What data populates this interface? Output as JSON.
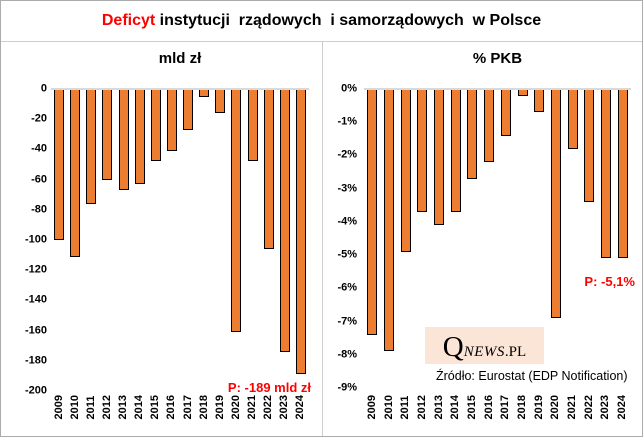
{
  "title": {
    "highlight": "Deficyt",
    "rest": " instytucji  rządowych  i samorządowych  w Polsce"
  },
  "colors": {
    "bar_fill": "#ED7D31",
    "bar_border": "#000000",
    "accent_red": "#FF0000",
    "zero_line": "#D9D9D9",
    "logo_background": "#FBE5D6",
    "frame_border": "#ABABAB"
  },
  "logo": {
    "q": "Q",
    "news": "NEWS",
    "pl": ".PL"
  },
  "source_note": "Źródło: Eurostat (EDP Notification)",
  "chart_data": [
    {
      "type": "bar",
      "title": "mld zł",
      "categories": [
        "2009",
        "2010",
        "2011",
        "2012",
        "2013",
        "2014",
        "2015",
        "2016",
        "2017",
        "2018",
        "2019",
        "2020",
        "2021",
        "2022",
        "2023",
        "2024"
      ],
      "values": [
        -100,
        -111,
        -76,
        -60,
        -67,
        -63,
        -48,
        -41,
        -27,
        -5,
        -16,
        -161,
        -48,
        -106,
        -174,
        -189
      ],
      "xlabel": "",
      "ylabel": "",
      "ylim": [
        0,
        -200
      ],
      "yticks": [
        0,
        -20,
        -40,
        -60,
        -80,
        -100,
        -120,
        -140,
        -160,
        -180,
        -200
      ],
      "ytick_labels": [
        "0",
        "-20",
        "-40",
        "-60",
        "-80",
        "-100",
        "-120",
        "-140",
        "-160",
        "-180",
        "-200"
      ],
      "grid": "zero-line-only",
      "legend": "none",
      "annotation": "P: -189 mld zł"
    },
    {
      "type": "bar",
      "title": "% PKB",
      "categories": [
        "2009",
        "2010",
        "2011",
        "2012",
        "2013",
        "2014",
        "2015",
        "2016",
        "2017",
        "2018",
        "2019",
        "2020",
        "2021",
        "2022",
        "2023",
        "2024"
      ],
      "values": [
        -7.4,
        -7.9,
        -4.9,
        -3.7,
        -4.1,
        -3.7,
        -2.7,
        -2.2,
        -1.4,
        -0.2,
        -0.7,
        -6.9,
        -1.8,
        -3.4,
        -5.1,
        -5.1
      ],
      "xlabel": "",
      "ylabel": "",
      "ylim": [
        0,
        -9
      ],
      "yticks": [
        0,
        -1,
        -2,
        -3,
        -4,
        -5,
        -6,
        -7,
        -8,
        -9
      ],
      "ytick_labels": [
        "0%",
        "-1%",
        "-2%",
        "-3%",
        "-4%",
        "-5%",
        "-6%",
        "-7%",
        "-8%",
        "-9%"
      ],
      "grid": "zero-line-only",
      "legend": "none",
      "annotation": "P: -5,1%"
    }
  ]
}
